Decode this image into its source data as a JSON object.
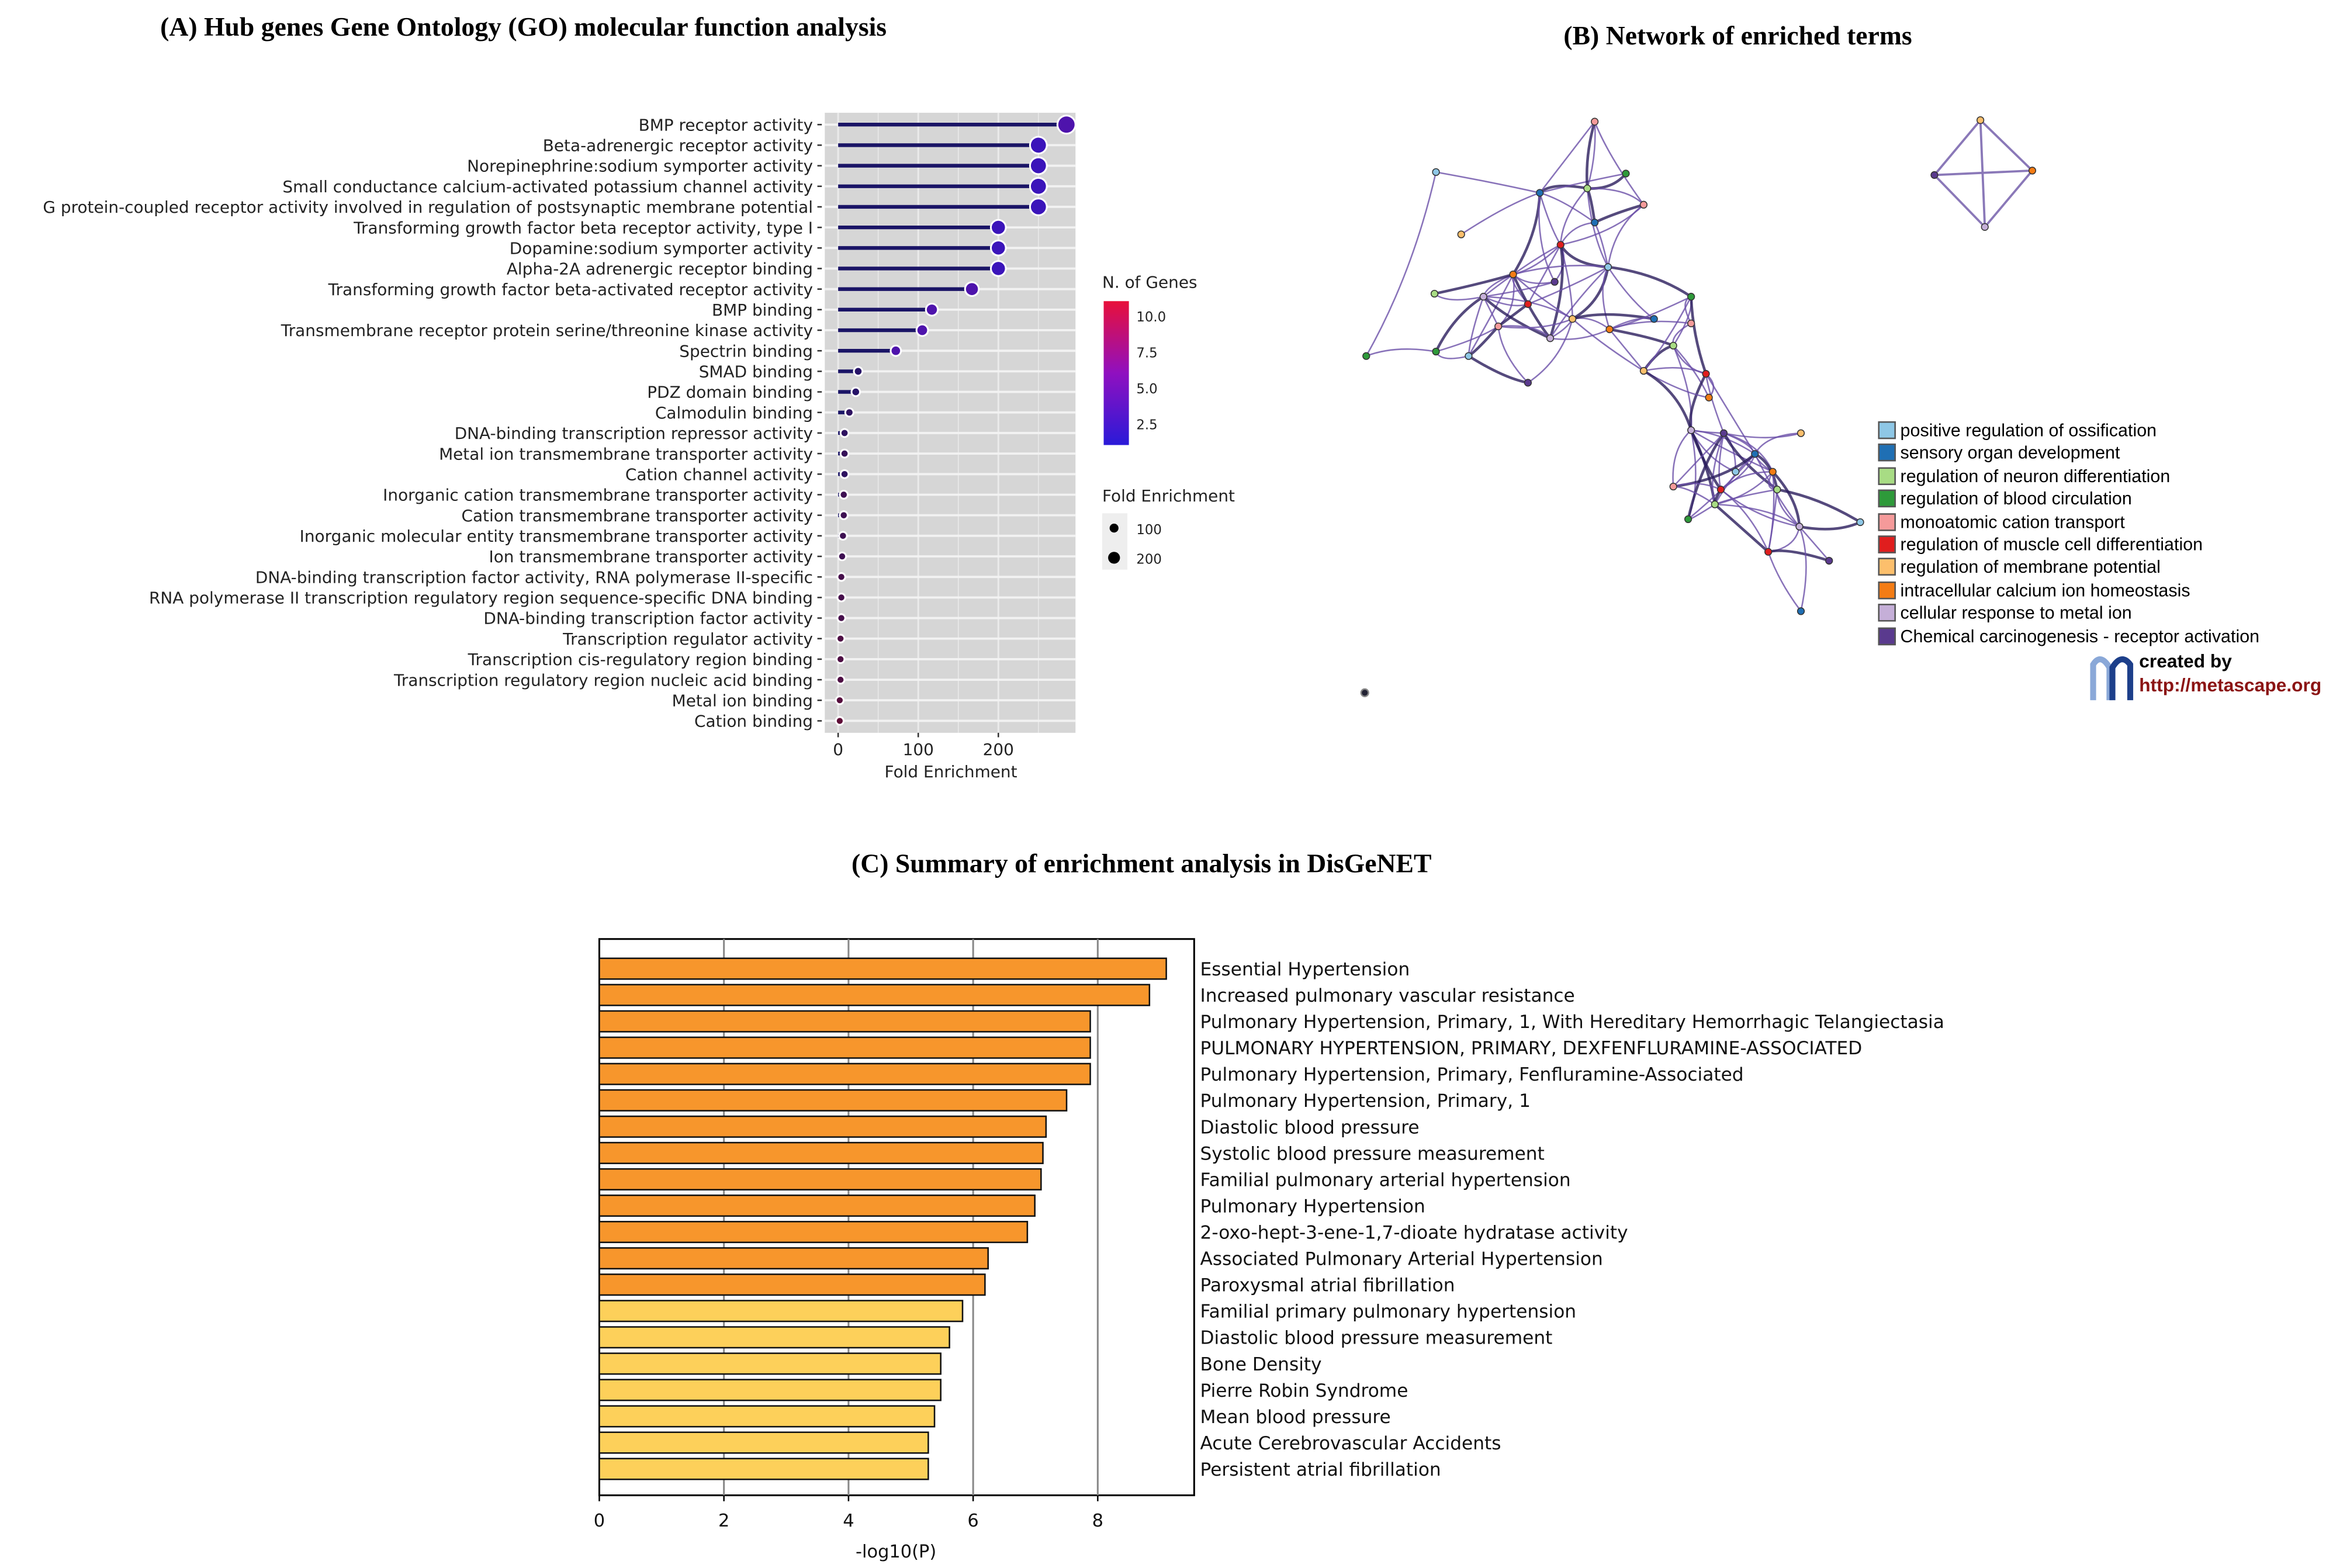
{
  "panels": {
    "a_title": "(A) Hub genes Gene Ontology (GO) molecular function analysis",
    "b_title": "(B) Network of enriched terms",
    "c_title": "(C) Summary of enrichment analysis in DisGeNET"
  },
  "chart_data": [
    {
      "type": "lollipop",
      "title": "(A) Hub genes Gene Ontology (GO) molecular function analysis",
      "xlabel": "Fold Enrichment",
      "xlim": [
        0,
        300
      ],
      "xticks": [
        0,
        100,
        200
      ],
      "color_legend": {
        "title": "N. of Genes",
        "ticks": [
          "10.0",
          "7.5",
          "5.0",
          "2.5"
        ],
        "range": [
          1,
          11
        ],
        "low": "#2a1ad8",
        "high": "#e8103a"
      },
      "size_legend": {
        "title": "Fold Enrichment",
        "entries": [
          "100",
          "200"
        ]
      },
      "categories": [
        "BMP receptor activity",
        "Beta-adrenergic receptor activity",
        "Norepinephrine:sodium symporter activity",
        "Small conductance calcium-activated potassium channel activity",
        "G protein-coupled receptor activity involved in regulation of postsynaptic membrane potential",
        "Transforming growth factor beta receptor activity, type I",
        "Dopamine:sodium symporter activity",
        "Alpha-2A adrenergic receptor binding",
        "Transforming growth factor beta-activated receptor activity",
        "BMP binding",
        "Transmembrane receptor protein serine/threonine kinase activity",
        "Spectrin binding",
        "SMAD binding",
        "PDZ domain binding",
        "Calmodulin binding",
        "DNA-binding transcription repressor activity",
        "Metal ion transmembrane transporter activity",
        "Cation channel activity",
        "Inorganic cation transmembrane transporter activity",
        "Cation transmembrane transporter activity",
        "Inorganic molecular entity transmembrane transporter activity",
        "Ion transmembrane transporter activity",
        "DNA-binding transcription factor activity, RNA polymerase II-specific",
        "RNA polymerase II transcription regulatory region sequence-specific DNA binding",
        "DNA-binding transcription factor activity",
        "Transcription regulator activity",
        "Transcription cis-regulatory region binding",
        "Transcription regulatory region nucleic acid binding",
        "Metal ion binding",
        "Cation binding"
      ],
      "values": [
        285,
        250,
        250,
        250,
        250,
        200,
        200,
        200,
        167,
        117,
        105,
        72,
        25,
        22,
        14,
        8,
        8,
        8,
        7,
        7,
        6,
        5,
        4,
        4,
        4,
        3,
        3,
        3,
        2,
        2
      ],
      "n_genes": [
        3,
        2,
        2,
        2,
        2,
        2,
        2,
        2,
        3,
        3,
        3,
        3,
        2,
        2,
        3,
        3,
        4,
        3,
        5,
        5,
        5,
        5,
        6,
        6,
        6,
        7,
        7,
        7,
        8,
        9
      ]
    },
    {
      "type": "bar",
      "title": "(C) Summary of enrichment analysis in DisGeNET",
      "xlabel": "-log10(P)",
      "xlim": [
        0,
        9.6
      ],
      "xticks": [
        0,
        2,
        4,
        6,
        8
      ],
      "categories": [
        "Essential Hypertension",
        "Increased pulmonary vascular resistance",
        "Pulmonary Hypertension, Primary, 1, With Hereditary Hemorrhagic Telangiectasia",
        "PULMONARY HYPERTENSION, PRIMARY, DEXFENFLURAMINE-ASSOCIATED",
        "Pulmonary Hypertension, Primary, Fenfluramine-Associated",
        "Pulmonary Hypertension, Primary, 1",
        "Diastolic blood pressure",
        "Systolic blood pressure measurement",
        "Familial pulmonary arterial hypertension",
        "Pulmonary Hypertension",
        "2-oxo-hept-3-ene-1,7-dioate hydratase activity",
        "Associated Pulmonary Arterial Hypertension",
        "Paroxysmal atrial fibrillation",
        "Familial primary pulmonary hypertension",
        "Diastolic blood pressure measurement",
        "Bone Density",
        "Pierre Robin Syndrome",
        "Mean blood pressure",
        "Acute Cerebrovascular Accidents",
        "Persistent atrial fibrillation"
      ],
      "values": [
        9.1,
        8.83,
        7.88,
        7.88,
        7.88,
        7.5,
        7.17,
        7.12,
        7.09,
        6.99,
        6.87,
        6.24,
        6.19,
        5.83,
        5.62,
        5.48,
        5.48,
        5.38,
        5.28,
        5.28
      ],
      "colors": {
        "strong": "#f7962c",
        "weak": "#fdd05a"
      }
    }
  ],
  "network": {
    "legend": [
      {
        "label": "positive regulation of ossification",
        "color": "#8ec7e6"
      },
      {
        "label": "sensory organ development",
        "color": "#1f6fb4"
      },
      {
        "label": "regulation of neuron differentiation",
        "color": "#a8dc84"
      },
      {
        "label": "regulation of blood circulation",
        "color": "#2e9a3a"
      },
      {
        "label": "monoatomic cation transport",
        "color": "#f59a9a"
      },
      {
        "label": "regulation of muscle cell differentiation",
        "color": "#e01e1e"
      },
      {
        "label": "regulation of membrane potential",
        "color": "#fcbf6c"
      },
      {
        "label": "intracellular calcium ion homeostasis",
        "color": "#f47c14"
      },
      {
        "label": "cellular response to metal ion",
        "color": "#c5afd8"
      },
      {
        "label": "Chemical carcinogenesis - receptor activation",
        "color": "#5a3a8e"
      }
    ],
    "credit": "created by",
    "url": "http://metascape.org"
  }
}
